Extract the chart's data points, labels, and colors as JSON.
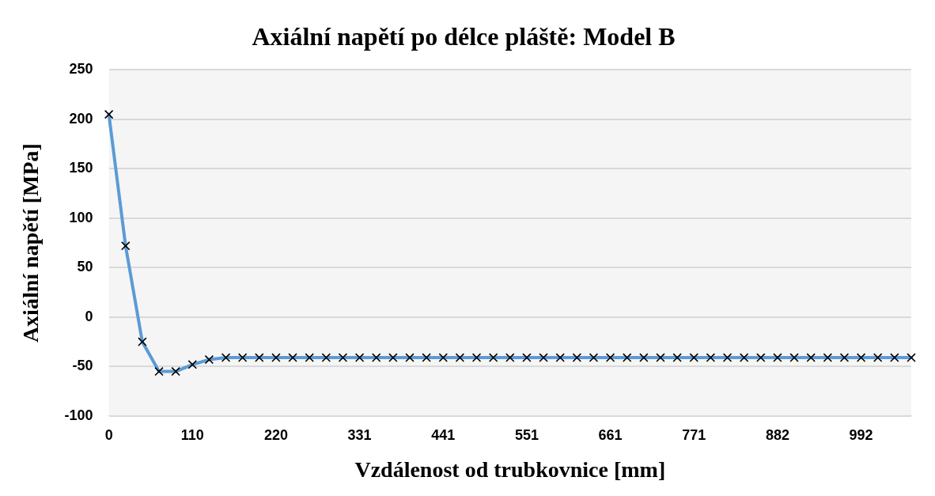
{
  "chart_data": {
    "type": "line",
    "title": "Axiální napětí po délce pláště: Model B",
    "xlabel": "Vzdálenost od trubkovnice [mm]",
    "ylabel": "Axiální napětí [MPa]",
    "categories": [
      "0",
      null,
      null,
      null,
      null,
      "110",
      null,
      null,
      null,
      null,
      "220",
      null,
      null,
      null,
      null,
      "331",
      null,
      null,
      null,
      null,
      "441",
      null,
      null,
      null,
      null,
      "551",
      null,
      null,
      null,
      null,
      "661",
      null,
      null,
      null,
      null,
      "771",
      null,
      null,
      null,
      null,
      "882",
      null,
      null,
      null,
      null,
      "992",
      null,
      null,
      null
    ],
    "series": [
      {
        "color": "#5b9bd5",
        "values": [
          205,
          72,
          -25,
          -55,
          -55,
          -48,
          -43,
          -41,
          -41,
          -41,
          -41,
          -41,
          -41,
          -41,
          -41,
          -41,
          -41,
          -41,
          -41,
          -41,
          -41,
          -41,
          -41,
          -41,
          -41,
          -41,
          -41,
          -41,
          -41,
          -41,
          -41,
          -41,
          -41,
          -41,
          -41,
          -41,
          -41,
          -41,
          -41,
          -41,
          -41,
          -41,
          -41,
          -41,
          -41,
          -41,
          -41,
          -41,
          -41
        ]
      }
    ],
    "ylim": [
      -100,
      250
    ],
    "yticks": [
      -100,
      -50,
      0,
      50,
      100,
      150,
      200,
      250
    ],
    "grid": "y",
    "legend": false,
    "marker": "cross",
    "line_style": "solid"
  }
}
